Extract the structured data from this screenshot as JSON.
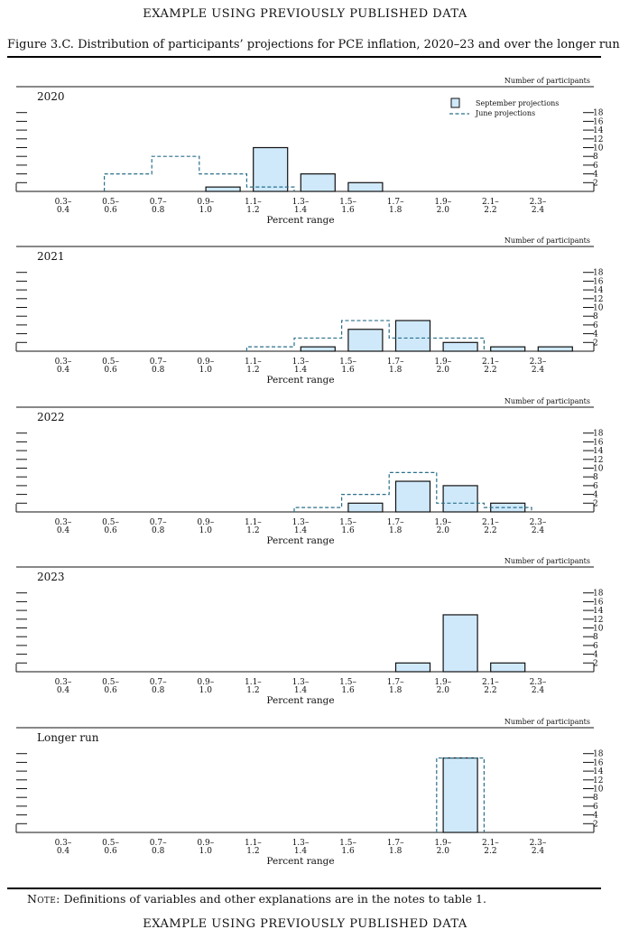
{
  "page": {
    "banner_top": "EXAMPLE USING PREVIOUSLY PUBLISHED DATA",
    "title": "Figure 3.C. Distribution of participants’ projections for PCE inflation, 2020–23 and over the longer run",
    "note_label": "Note:",
    "note_text": " Definitions of variables and other explanations are in the notes to table 1.",
    "banner_bottom": "EXAMPLE USING PREVIOUSLY PUBLISHED DATA"
  },
  "chart_data": {
    "type": "bar",
    "categories": [
      "0.3–0.4",
      "0.5–0.6",
      "0.7–0.8",
      "0.9–1.0",
      "1.1–1.2",
      "1.3–1.4",
      "1.5–1.6",
      "1.7–1.8",
      "1.9–2.0",
      "2.1–2.2",
      "2.3–2.4"
    ],
    "category_lines": [
      [
        "0.3–",
        "0.4"
      ],
      [
        "0.5–",
        "0.6"
      ],
      [
        "0.7–",
        "0.8"
      ],
      [
        "0.9–",
        "1.0"
      ],
      [
        "1.1–",
        "1.2"
      ],
      [
        "1.3–",
        "1.4"
      ],
      [
        "1.5–",
        "1.6"
      ],
      [
        "1.7–",
        "1.8"
      ],
      [
        "1.9–",
        "2.0"
      ],
      [
        "2.1–",
        "2.2"
      ],
      [
        "2.3–",
        "2.4"
      ]
    ],
    "xlabel": "Percent range",
    "ylabel": "Number of participants",
    "yticks": [
      2,
      4,
      6,
      8,
      10,
      12,
      14,
      16,
      18
    ],
    "ylim": [
      0,
      18
    ],
    "legend": {
      "position": "top-right",
      "september_label": "September projections",
      "june_label": "June projections"
    },
    "colors": {
      "bar_fill": "#cfe9fb",
      "bar_stroke": "#111111",
      "june_line": "#2a6f8a"
    },
    "panels": [
      {
        "label": "2020",
        "series": [
          {
            "name": "September projections",
            "values": [
              0,
              0,
              0,
              1,
              10,
              4,
              2,
              0,
              0,
              0,
              0
            ]
          },
          {
            "name": "June projections",
            "values": [
              0,
              4,
              8,
              4,
              1,
              0,
              0,
              0,
              0,
              0,
              0
            ]
          }
        ]
      },
      {
        "label": "2021",
        "series": [
          {
            "name": "September projections",
            "values": [
              0,
              0,
              0,
              0,
              0,
              1,
              5,
              7,
              2,
              1,
              1
            ]
          },
          {
            "name": "June projections",
            "values": [
              0,
              0,
              0,
              0,
              1,
              3,
              7,
              3,
              3,
              0,
              0
            ]
          }
        ]
      },
      {
        "label": "2022",
        "series": [
          {
            "name": "September projections",
            "values": [
              0,
              0,
              0,
              0,
              0,
              0,
              2,
              7,
              6,
              2,
              0
            ]
          },
          {
            "name": "June projections",
            "values": [
              0,
              0,
              0,
              0,
              0,
              1,
              4,
              9,
              2,
              1,
              0
            ]
          }
        ]
      },
      {
        "label": "2023",
        "series": [
          {
            "name": "September projections",
            "values": [
              0,
              0,
              0,
              0,
              0,
              0,
              0,
              2,
              13,
              2,
              0
            ]
          },
          {
            "name": "June projections",
            "values": [
              0,
              0,
              0,
              0,
              0,
              0,
              0,
              0,
              0,
              0,
              0
            ]
          }
        ]
      },
      {
        "label": "Longer run",
        "series": [
          {
            "name": "September projections",
            "values": [
              0,
              0,
              0,
              0,
              0,
              0,
              0,
              0,
              17,
              0,
              0
            ]
          },
          {
            "name": "June projections",
            "values": [
              0,
              0,
              0,
              0,
              0,
              0,
              0,
              0,
              17,
              0,
              0
            ]
          }
        ]
      }
    ]
  }
}
